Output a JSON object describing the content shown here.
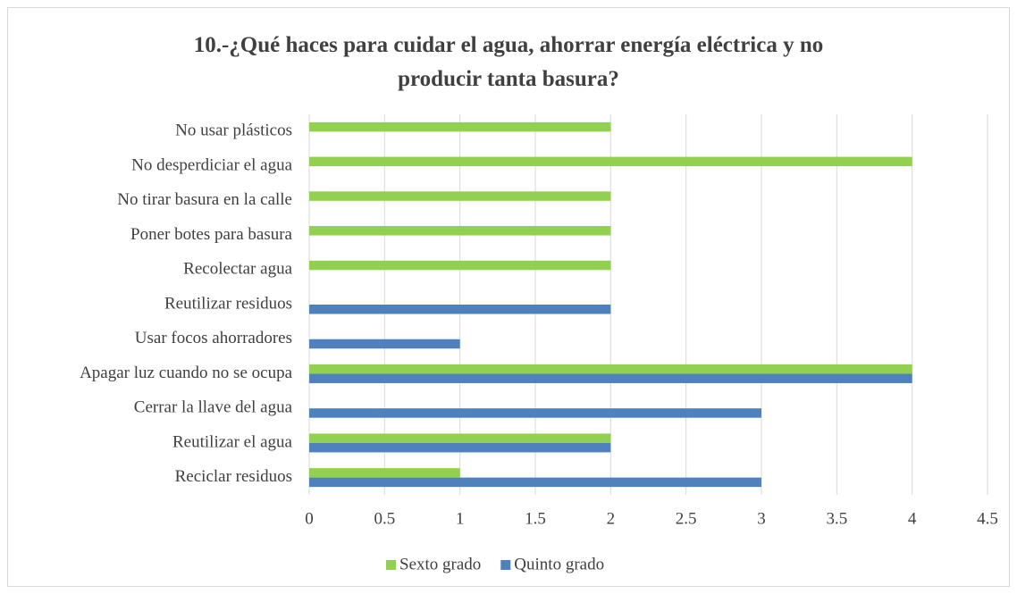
{
  "chart_data": {
    "type": "hbar",
    "title": "10.-¿Qué haces para cuidar el agua, ahorrar energía eléctrica y no producir tanta basura?",
    "categories": [
      "No usar plásticos",
      "No desperdiciar el agua",
      "No tirar basura en la calle",
      "Poner botes para basura",
      "Recolectar agua",
      "Reutilizar residuos",
      "Usar focos ahorradores",
      "Apagar luz cuando no se ocupa",
      "Cerrar la llave del agua",
      "Reutilizar el agua",
      "Reciclar residuos"
    ],
    "series": [
      {
        "name": "Sexto grado",
        "color": "#92d050",
        "values": [
          2,
          4,
          2,
          2,
          2,
          0,
          0,
          4,
          0,
          2,
          1
        ]
      },
      {
        "name": "Quinto grado",
        "color": "#4f81bd",
        "values": [
          0,
          0,
          0,
          0,
          0,
          2,
          1,
          4,
          3,
          2,
          3
        ]
      }
    ],
    "xlim": [
      0,
      4.5
    ],
    "xticks": [
      0,
      0.5,
      1,
      1.5,
      2,
      2.5,
      3,
      3.5,
      4,
      4.5
    ],
    "grid": true,
    "legend": "bottom"
  }
}
